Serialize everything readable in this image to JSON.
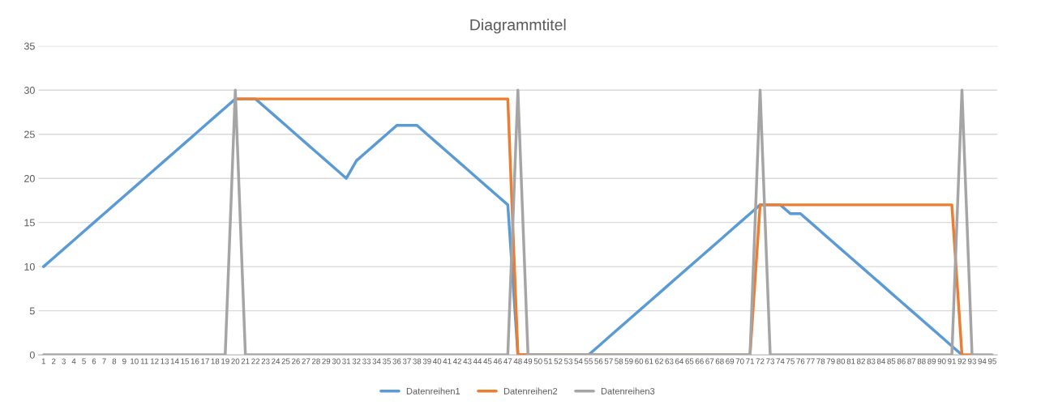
{
  "chart_data": {
    "type": "line",
    "title": "Diagrammtitel",
    "categories": [
      "1",
      "2",
      "3",
      "4",
      "5",
      "6",
      "7",
      "8",
      "9",
      "10",
      "11",
      "12",
      "13",
      "14",
      "15",
      "16",
      "17",
      "18",
      "19",
      "20",
      "21",
      "22",
      "23",
      "24",
      "25",
      "26",
      "27",
      "28",
      "29",
      "30",
      "31",
      "32",
      "33",
      "34",
      "35",
      "36",
      "37",
      "38",
      "39",
      "40",
      "41",
      "42",
      "43",
      "44",
      "45",
      "46",
      "47",
      "48",
      "49",
      "50",
      "51",
      "52",
      "53",
      "54",
      "55",
      "56",
      "57",
      "58",
      "59",
      "60",
      "61",
      "62",
      "63",
      "64",
      "65",
      "66",
      "67",
      "68",
      "69",
      "70",
      "71",
      "72",
      "73",
      "74",
      "75",
      "76",
      "77",
      "78",
      "79",
      "80",
      "81",
      "82",
      "83",
      "84",
      "85",
      "86",
      "87",
      "88",
      "89",
      "90",
      "91",
      "92",
      "93",
      "94",
      "95"
    ],
    "series": [
      {
        "name": "Datenreihen1",
        "color": "#5b9bd5",
        "values": [
          10,
          11,
          12,
          13,
          14,
          15,
          16,
          17,
          18,
          19,
          20,
          21,
          22,
          23,
          24,
          25,
          26,
          27,
          28,
          29,
          null,
          29,
          28,
          27,
          26,
          25,
          24,
          23,
          22,
          21,
          20,
          22,
          23,
          24,
          25,
          26,
          26,
          26,
          25,
          24,
          23,
          22,
          21,
          20,
          19,
          18,
          17,
          0,
          0,
          0,
          0,
          0,
          0,
          0,
          0,
          1,
          2,
          3,
          4,
          5,
          6,
          7,
          8,
          9,
          10,
          11,
          12,
          13,
          14,
          15,
          16,
          17,
          null,
          17,
          16,
          16,
          15,
          14,
          13,
          12,
          11,
          10,
          9,
          8,
          7,
          6,
          5,
          4,
          3,
          2,
          1,
          0,
          null,
          null,
          null
        ]
      },
      {
        "name": "Datenreihen2",
        "color": "#ed7d31",
        "values": [
          null,
          null,
          null,
          null,
          null,
          null,
          null,
          null,
          null,
          null,
          null,
          null,
          null,
          null,
          null,
          null,
          null,
          null,
          null,
          29,
          29,
          29,
          29,
          29,
          29,
          29,
          29,
          29,
          29,
          29,
          29,
          29,
          29,
          29,
          29,
          29,
          29,
          29,
          29,
          29,
          29,
          29,
          29,
          29,
          29,
          29,
          29,
          0,
          0,
          null,
          null,
          null,
          null,
          null,
          null,
          null,
          null,
          null,
          null,
          null,
          null,
          null,
          null,
          null,
          null,
          null,
          null,
          null,
          null,
          null,
          0,
          17,
          17,
          17,
          17,
          17,
          17,
          17,
          17,
          17,
          17,
          17,
          17,
          17,
          17,
          17,
          17,
          17,
          17,
          17,
          17,
          0,
          0,
          null,
          null
        ]
      },
      {
        "name": "Datenreihen3",
        "color": "#a5a5a5",
        "values": [
          0,
          0,
          0,
          0,
          0,
          0,
          0,
          0,
          0,
          0,
          0,
          0,
          0,
          0,
          0,
          0,
          0,
          0,
          0,
          30,
          0,
          0,
          0,
          0,
          0,
          0,
          0,
          0,
          0,
          0,
          0,
          0,
          0,
          0,
          0,
          0,
          0,
          0,
          0,
          0,
          0,
          0,
          0,
          0,
          0,
          0,
          0,
          30,
          0,
          0,
          0,
          0,
          0,
          0,
          0,
          0,
          0,
          0,
          0,
          0,
          0,
          0,
          0,
          0,
          0,
          0,
          0,
          0,
          0,
          0,
          0,
          30,
          0,
          0,
          0,
          0,
          0,
          0,
          0,
          0,
          0,
          0,
          0,
          0,
          0,
          0,
          0,
          0,
          0,
          0,
          0,
          30,
          0,
          0,
          0
        ]
      }
    ],
    "ylim": [
      0,
      35
    ],
    "yticks": [
      0,
      5,
      10,
      15,
      20,
      25,
      30,
      35
    ],
    "grid": "y",
    "legend": "bottom",
    "marker": "none",
    "line_style": "solid"
  }
}
